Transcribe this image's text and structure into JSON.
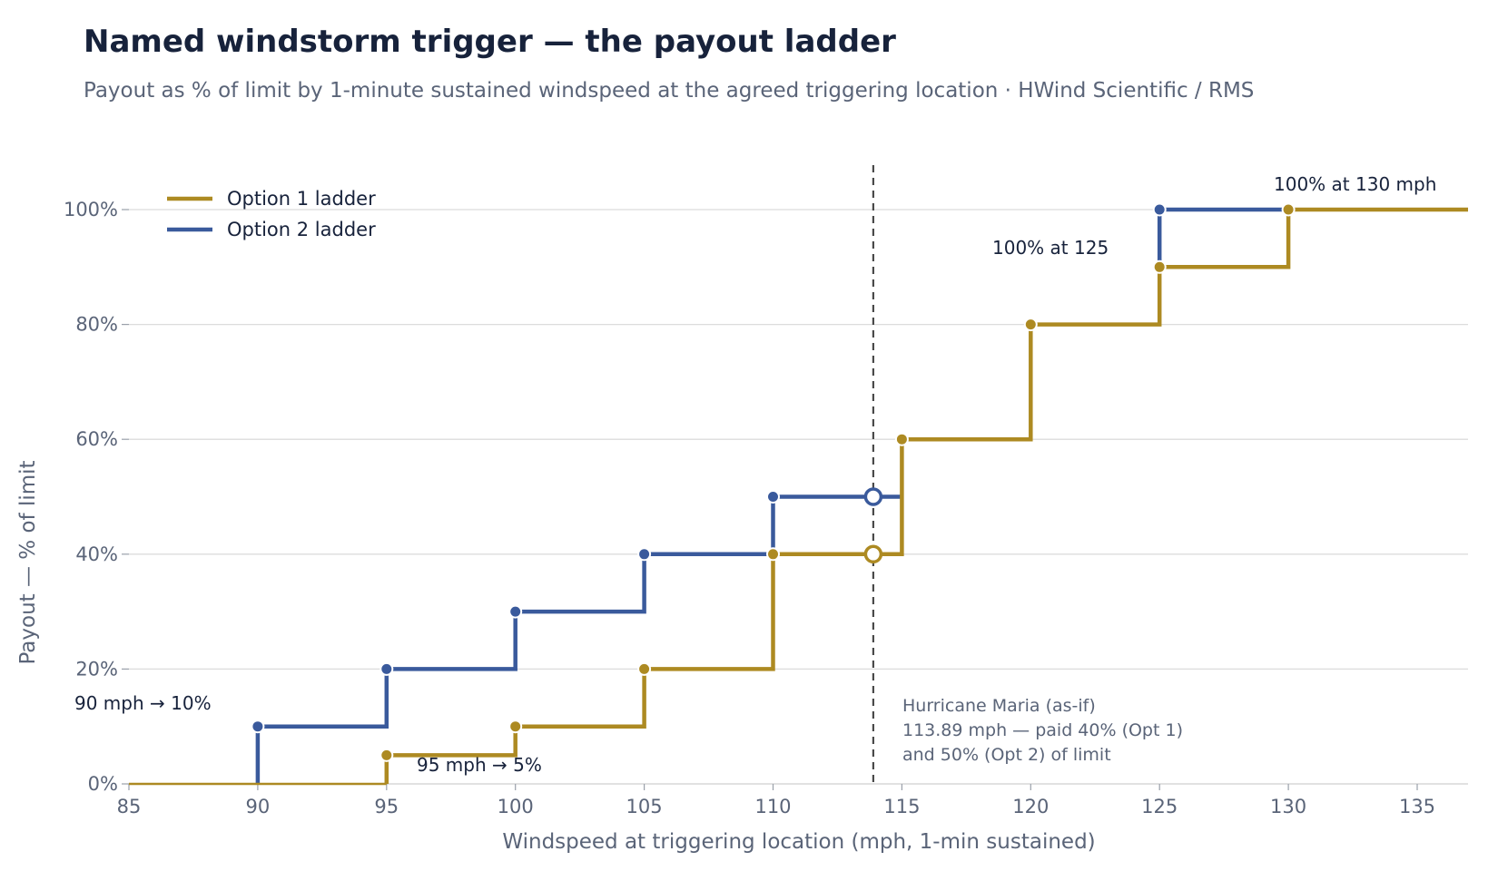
{
  "chart_data": {
    "type": "line",
    "title": "Named windstorm trigger — the payout ladder",
    "subtitle": "Payout as % of limit by 1-minute sustained windspeed at the agreed triggering location · HWind Scientific / RMS",
    "xlabel": "Windspeed at triggering location (mph, 1-min sustained)",
    "ylabel": "Payout — % of limit",
    "xlim": [
      85,
      137
    ],
    "ylim": [
      0,
      107
    ],
    "x_ticks": [
      85,
      90,
      95,
      100,
      105,
      110,
      115,
      120,
      125,
      130,
      135
    ],
    "y_ticks": [
      0,
      20,
      40,
      60,
      80,
      100
    ],
    "y_tick_labels": [
      "0%",
      "20%",
      "40%",
      "60%",
      "80%",
      "100%"
    ],
    "grid": "horizontal",
    "legend_position": "top-left",
    "series": [
      {
        "name": "Option 1 ladder",
        "color": "#ad8a22",
        "step": "post",
        "x": [
          85,
          95,
          100,
          105,
          110,
          115,
          120,
          125,
          130
        ],
        "y": [
          0,
          5,
          10,
          20,
          40,
          60,
          80,
          90,
          100
        ],
        "marker_x": [
          95,
          100,
          105,
          110,
          115,
          120,
          125,
          130
        ],
        "marker_y": [
          5,
          10,
          20,
          40,
          60,
          80,
          90,
          100
        ]
      },
      {
        "name": "Option 2 ladder",
        "color": "#3a5a9c",
        "step": "post",
        "x": [
          90,
          95,
          100,
          105,
          110,
          115,
          125
        ],
        "y": [
          10,
          20,
          30,
          40,
          50,
          null,
          100
        ],
        "segments": [
          {
            "x": [
              90,
              95,
              100,
              105,
              110,
              115
            ],
            "y": [
              10,
              20,
              30,
              40,
              50,
              50
            ]
          },
          {
            "x": [
              125,
              130
            ],
            "y": [
              100,
              100
            ]
          }
        ],
        "marker_x": [
          90,
          95,
          100,
          105,
          110,
          125
        ],
        "marker_y": [
          10,
          20,
          30,
          40,
          50,
          100
        ]
      }
    ],
    "event_line": {
      "x": 113.89,
      "color": "#4a4a4a"
    },
    "event_points": [
      {
        "series": "Option 1 ladder",
        "x": 113.89,
        "y": 40
      },
      {
        "series": "Option 2 ladder",
        "x": 113.89,
        "y": 50
      }
    ],
    "annotations": [
      {
        "text": "90 mph → 10%",
        "x": 90,
        "y": 10
      },
      {
        "text": "95 mph → 5%",
        "x": 95,
        "y": 5
      },
      {
        "text": "100% at 125",
        "x": 125,
        "y": 100
      },
      {
        "text": "100% at 130 mph",
        "x": 130,
        "y": 100
      }
    ],
    "event_note": [
      "Hurricane Maria (as-if)",
      "113.89 mph — paid 40% (Opt 1)",
      "and 50% (Opt 2) of limit"
    ]
  }
}
